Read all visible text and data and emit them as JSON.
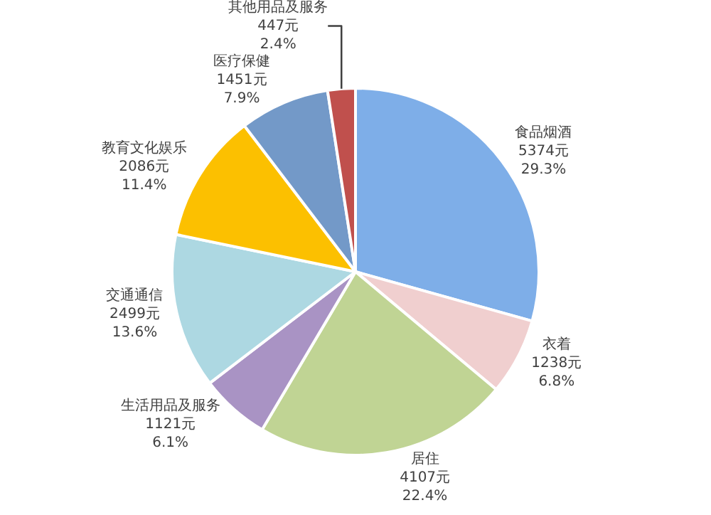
{
  "chart_data": {
    "type": "pie",
    "categories": [
      "食品烟酒",
      "衣着",
      "居住",
      "生活用品及服务",
      "交通通信",
      "教育文化娱乐",
      "医疗保健",
      "其他用品及服务"
    ],
    "values": [
      5374,
      1238,
      4107,
      1121,
      2499,
      2086,
      1451,
      447
    ],
    "value_labels": [
      "5374元\n29.3%",
      "1238元\n6.8%",
      "4107元\n22.4%",
      "1121元\n6.1%",
      "2499元\n13.6%",
      "2086元\n11.4%",
      "1451元\n7.9%",
      "447元\n2.4%"
    ],
    "colors": [
      "#7eaee8",
      "#f0cfcf",
      "#c0d494",
      "#a993c4",
      "#add8e2",
      "#fcc000",
      "#7399c8",
      "#c0504d"
    ],
    "legend": false
  }
}
